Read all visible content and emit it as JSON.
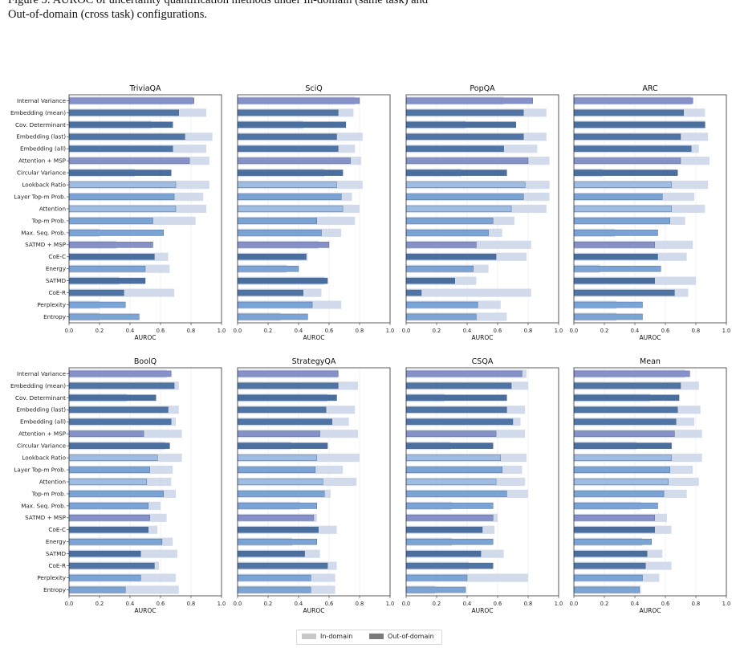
{
  "caption": {
    "line1_partial": "Figure 5: AUROC of uncertainty quantification methods under In-domain (same task) and",
    "line2": "Out-of-domain (cross task) configurations."
  },
  "methods": [
    "Internal Variance",
    "Embedding (mean)",
    "Cov. Determinant",
    "Embedding (last)",
    "Embedding (all)",
    "Attention + MSP",
    "Circular Variance",
    "Lookback Ratio",
    "Layer Top-m Prob.",
    "Attention",
    "Top-m Prob.",
    "Max. Seq. Prob.",
    "SATMD + MSP",
    "CoE-C",
    "Energy",
    "SATMD",
    "CoE-R",
    "Perplexity",
    "Entropy"
  ],
  "colors": {
    "in_domain_light": "#cfd9ea",
    "out_of_domain": [
      "#8791c9",
      "#4f74a6",
      "#4a6f9f",
      "#4f74a6",
      "#4f74a6",
      "#8791c9",
      "#4a6f9f",
      "#9fbde3",
      "#7aa3d6",
      "#9fbde3",
      "#7aa3d6",
      "#7aa3d6",
      "#8791c9",
      "#4a6f9f",
      "#7aa3d6",
      "#4a6f9f",
      "#4f74a6",
      "#7aa3d6",
      "#7aa3d6"
    ],
    "legend_in": "#c8c8c8",
    "legend_out": "#7a7a7a"
  },
  "legend": {
    "in_domain": "In-domain",
    "out_of_domain": "Out-of-domain"
  },
  "chart_data": [
    {
      "type": "bar",
      "title": "TriviaQA",
      "xlabel": "AUROC",
      "xlim": [
        0,
        1
      ],
      "xticks": [
        "0.0",
        "0.2",
        "0.4",
        "0.6",
        "0.8",
        "1.0"
      ],
      "series": [
        {
          "name": "In-domain",
          "values": [
            0.81,
            0.9,
            0.54,
            0.94,
            0.9,
            0.92,
            0.43,
            0.92,
            0.88,
            0.9,
            0.83,
            0.2,
            0.31,
            0.65,
            0.66,
            0.33,
            0.69,
            0.2,
            0.2
          ]
        },
        {
          "name": "Out-of-domain",
          "values": [
            0.82,
            0.72,
            0.68,
            0.76,
            0.68,
            0.79,
            0.67,
            0.7,
            0.69,
            0.7,
            0.55,
            0.62,
            0.55,
            0.56,
            0.5,
            0.5,
            0.36,
            0.37,
            0.46
          ]
        }
      ]
    },
    {
      "type": "bar",
      "title": "SciQ",
      "xlabel": "AUROC",
      "xlim": [
        0,
        1
      ],
      "xticks": [
        "0.0",
        "0.2",
        "0.4",
        "0.6",
        "0.8",
        "1.0"
      ],
      "series": [
        {
          "name": "In-domain",
          "values": [
            0.77,
            0.76,
            0.43,
            0.82,
            0.77,
            0.81,
            0.57,
            0.82,
            0.75,
            0.8,
            0.77,
            0.68,
            0.53,
            0.46,
            0.32,
            0.57,
            0.55,
            0.68,
            0.28
          ]
        },
        {
          "name": "Out-of-domain",
          "values": [
            0.8,
            0.66,
            0.71,
            0.65,
            0.66,
            0.74,
            0.69,
            0.65,
            0.68,
            0.69,
            0.52,
            0.55,
            0.6,
            0.45,
            0.4,
            0.59,
            0.43,
            0.49,
            0.46
          ]
        }
      ]
    },
    {
      "type": "bar",
      "title": "PopQA",
      "xlabel": "AUROC",
      "xlim": [
        0,
        1
      ],
      "xticks": [
        "0.0",
        "0.2",
        "0.4",
        "0.6",
        "0.8",
        "1.0"
      ],
      "series": [
        {
          "name": "In-domain",
          "values": [
            0.64,
            0.92,
            0.39,
            0.92,
            0.86,
            0.94,
            0.36,
            0.94,
            0.94,
            0.92,
            0.71,
            0.63,
            0.82,
            0.79,
            0.54,
            0.46,
            0.82,
            0.62,
            0.66
          ]
        },
        {
          "name": "Out-of-domain",
          "values": [
            0.83,
            0.77,
            0.72,
            0.77,
            0.64,
            0.8,
            0.66,
            0.78,
            0.77,
            0.69,
            0.57,
            0.54,
            0.46,
            0.59,
            0.44,
            0.32,
            0.1,
            0.47,
            0.46
          ]
        }
      ]
    },
    {
      "type": "bar",
      "title": "ARC",
      "xlabel": "AUROC",
      "xlim": [
        0,
        1
      ],
      "xticks": [
        "0.0",
        "0.2",
        "0.4",
        "0.6",
        "0.8",
        "1.0"
      ],
      "series": [
        {
          "name": "In-domain",
          "values": [
            0.77,
            0.86,
            0.86,
            0.88,
            0.82,
            0.89,
            0.19,
            0.88,
            0.79,
            0.86,
            0.73,
            0.27,
            0.78,
            0.74,
            0.17,
            0.8,
            0.75,
            0.28,
            0.28
          ]
        },
        {
          "name": "Out-of-domain",
          "values": [
            0.78,
            0.72,
            0.86,
            0.7,
            0.77,
            0.7,
            0.68,
            0.64,
            0.58,
            0.64,
            0.63,
            0.55,
            0.53,
            0.55,
            0.57,
            0.53,
            0.66,
            0.45,
            0.45
          ]
        }
      ]
    },
    {
      "type": "bar",
      "title": "BoolQ",
      "xlabel": "AUROC",
      "xlim": [
        0,
        1
      ],
      "xticks": [
        "0.0",
        "0.2",
        "0.4",
        "0.6",
        "0.8",
        "1.0"
      ],
      "series": [
        {
          "name": "In-domain",
          "values": [
            0.64,
            0.72,
            0.38,
            0.72,
            0.7,
            0.74,
            0.63,
            0.74,
            0.68,
            0.67,
            0.7,
            0.6,
            0.64,
            0.58,
            0.68,
            0.71,
            0.59,
            0.7,
            0.72
          ]
        },
        {
          "name": "Out-of-domain",
          "values": [
            0.67,
            0.69,
            0.57,
            0.65,
            0.67,
            0.49,
            0.66,
            0.58,
            0.53,
            0.51,
            0.62,
            0.52,
            0.53,
            0.52,
            0.61,
            0.47,
            0.56,
            0.47,
            0.37
          ]
        }
      ]
    },
    {
      "type": "bar",
      "title": "StrategyQA",
      "xlabel": "AUROC",
      "xlim": [
        0,
        1
      ],
      "xticks": [
        "0.0",
        "0.2",
        "0.4",
        "0.6",
        "0.8",
        "1.0"
      ],
      "series": [
        {
          "name": "In-domain",
          "values": [
            0.66,
            0.79,
            0.59,
            0.77,
            0.73,
            0.79,
            0.35,
            0.8,
            0.69,
            0.78,
            0.61,
            0.41,
            0.52,
            0.65,
            0.36,
            0.54,
            0.65,
            0.64,
            0.64
          ]
        },
        {
          "name": "Out-of-domain",
          "values": [
            0.66,
            0.66,
            0.65,
            0.58,
            0.62,
            0.54,
            0.59,
            0.52,
            0.51,
            0.56,
            0.57,
            0.52,
            0.5,
            0.53,
            0.52,
            0.44,
            0.59,
            0.48,
            0.48
          ]
        }
      ]
    },
    {
      "type": "bar",
      "title": "CSQA",
      "xlabel": "AUROC",
      "xlim": [
        0,
        1
      ],
      "xticks": [
        "0.0",
        "0.2",
        "0.4",
        "0.6",
        "0.8",
        "1.0"
      ],
      "series": [
        {
          "name": "In-domain",
          "values": [
            0.79,
            0.8,
            0.25,
            0.78,
            0.75,
            0.78,
            0.29,
            0.79,
            0.76,
            0.78,
            0.8,
            0.3,
            0.6,
            0.58,
            0.3,
            0.64,
            0.41,
            0.8,
            0.19
          ]
        },
        {
          "name": "Out-of-domain",
          "values": [
            0.76,
            0.69,
            0.66,
            0.66,
            0.7,
            0.59,
            0.57,
            0.62,
            0.63,
            0.59,
            0.66,
            0.57,
            0.57,
            0.5,
            0.57,
            0.49,
            0.57,
            0.4,
            0.39
          ]
        }
      ]
    },
    {
      "type": "bar",
      "title": "Mean",
      "xlabel": "AUROC",
      "xlim": [
        0,
        1
      ],
      "xticks": [
        "0.0",
        "0.2",
        "0.4",
        "0.6",
        "0.8",
        "1.0"
      ],
      "series": [
        {
          "name": "In-domain",
          "values": [
            0.73,
            0.82,
            0.5,
            0.83,
            0.79,
            0.84,
            0.41,
            0.84,
            0.78,
            0.82,
            0.74,
            0.44,
            0.61,
            0.64,
            0.45,
            0.58,
            0.64,
            0.56,
            0.44
          ]
        },
        {
          "name": "Out-of-domain",
          "values": [
            0.76,
            0.7,
            0.69,
            0.68,
            0.67,
            0.66,
            0.64,
            0.64,
            0.63,
            0.62,
            0.59,
            0.55,
            0.53,
            0.53,
            0.51,
            0.48,
            0.47,
            0.45,
            0.43
          ]
        }
      ]
    }
  ]
}
